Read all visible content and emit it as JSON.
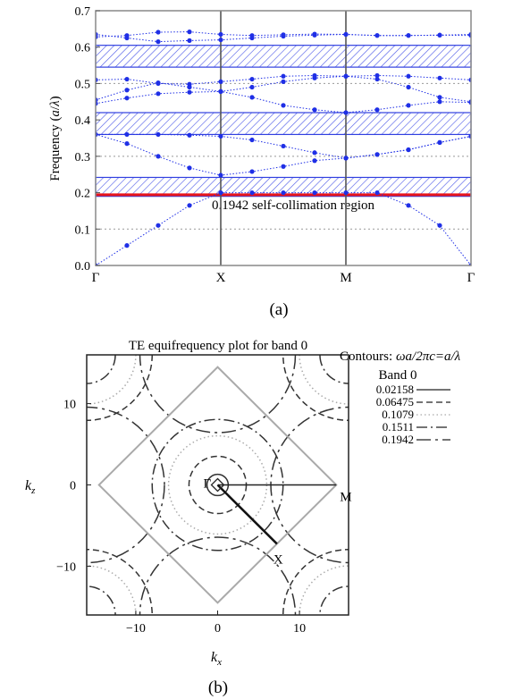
{
  "chart_data": [
    {
      "type": "scatter",
      "panel_caption": "(a)",
      "ylabel": "Frequency (a/λ)",
      "ylabel_parts": {
        "prefix": "Frequency (",
        "a": "a",
        "slash": "/",
        "lambda": "λ",
        "suffix": ")"
      },
      "ylim": [
        0.0,
        0.7
      ],
      "yticks": [
        "0.0",
        "0.1",
        "0.2",
        "0.3",
        "0.4",
        "0.5",
        "0.6",
        "0.7"
      ],
      "yticks_values": [
        0.0,
        0.1,
        0.2,
        0.3,
        0.4,
        0.5,
        0.6,
        0.7
      ],
      "xlim": [
        0,
        3
      ],
      "xticks": [
        "Γ",
        "X",
        "M",
        "Γ"
      ],
      "xticks_values": [
        0,
        1,
        2,
        3
      ],
      "grid": "dotted horizontal",
      "band_gaps": [
        [
          0.19,
          0.242
        ],
        [
          0.36,
          0.42
        ],
        [
          0.545,
          0.605
        ]
      ],
      "self_collimation": {
        "value": 0.1942,
        "label": "0.1942 self-collimation region",
        "color": "#e8141c"
      },
      "point_color": "#1f2fe6",
      "series": [
        {
          "x": [
            0,
            0.25,
            0.5,
            0.75,
            1,
            1.25,
            1.5,
            1.75,
            2,
            2.25,
            2.5,
            2.75,
            3
          ],
          "y": [
            0.0,
            0.055,
            0.11,
            0.165,
            0.2,
            0.2,
            0.2,
            0.2,
            0.2,
            0.2,
            0.165,
            0.11,
            0.0
          ]
        },
        {
          "x": [
            0,
            0.25,
            0.5,
            0.75,
            1,
            1.25,
            1.5,
            1.75,
            2,
            2.25,
            2.5,
            2.75,
            3
          ],
          "y": [
            0.36,
            0.335,
            0.3,
            0.268,
            0.248,
            0.258,
            0.272,
            0.288,
            0.295,
            0.305,
            0.318,
            0.338,
            0.355
          ]
        },
        {
          "x": [
            0,
            0.25,
            0.5,
            0.75,
            1,
            1.25,
            1.5,
            1.75,
            2,
            2.25,
            2.5,
            2.75,
            3
          ],
          "y": [
            0.36,
            0.36,
            0.36,
            0.358,
            0.355,
            0.345,
            0.328,
            0.31,
            0.295,
            0.305,
            0.318,
            0.338,
            0.355
          ]
        },
        {
          "x": [
            0,
            0.25,
            0.5,
            0.75,
            1,
            1.25,
            1.5,
            1.75,
            2,
            2.25,
            2.5,
            2.75,
            3
          ],
          "y": [
            0.445,
            0.46,
            0.472,
            0.476,
            0.478,
            0.462,
            0.44,
            0.428,
            0.42,
            0.428,
            0.44,
            0.45,
            0.448
          ]
        },
        {
          "x": [
            0,
            0.25,
            0.5,
            0.75,
            1,
            1.25,
            1.5,
            1.75,
            2,
            2.25,
            2.5,
            2.75,
            3
          ],
          "y": [
            0.455,
            0.482,
            0.502,
            0.49,
            0.478,
            0.49,
            0.505,
            0.515,
            0.52,
            0.512,
            0.49,
            0.462,
            0.45
          ]
        },
        {
          "x": [
            0,
            0.25,
            0.5,
            0.75,
            1,
            1.25,
            1.5,
            1.75,
            2,
            2.25,
            2.5,
            2.75,
            3
          ],
          "y": [
            0.51,
            0.512,
            0.5,
            0.498,
            0.505,
            0.512,
            0.52,
            0.522,
            0.52,
            0.522,
            0.52,
            0.515,
            0.51
          ]
        },
        {
          "x": [
            0,
            0.25,
            0.5,
            0.75,
            1,
            1.25,
            1.5,
            1.75,
            2,
            2.25,
            2.5,
            2.75,
            3
          ],
          "y": [
            0.628,
            0.632,
            0.641,
            0.642,
            0.635,
            0.632,
            0.634,
            0.636,
            0.635,
            0.632,
            0.632,
            0.633,
            0.632
          ]
        },
        {
          "x": [
            0,
            0.25,
            0.5,
            0.75,
            1,
            1.25,
            1.5,
            1.75,
            2,
            2.25,
            2.5,
            2.75,
            3
          ],
          "y": [
            0.635,
            0.625,
            0.615,
            0.618,
            0.62,
            0.625,
            0.63,
            0.633,
            0.635,
            0.632,
            0.632,
            0.633,
            0.635
          ]
        }
      ]
    },
    {
      "type": "contour",
      "panel_caption": "(b)",
      "title": "TE equifrequency plot for band 0",
      "xlabel": "k_x",
      "ylabel": "k_z",
      "xlabel_parts": {
        "main": "k",
        "sub": "x"
      },
      "ylabel_parts": {
        "main": "k",
        "sub": "z"
      },
      "xlim": [
        -16,
        16
      ],
      "ylim": [
        -16,
        16
      ],
      "xticks": [
        "−10",
        "0",
        "10"
      ],
      "xticks_values": [
        -10,
        0,
        10
      ],
      "yticks": [
        "10",
        "0",
        "−10"
      ],
      "yticks_values": [
        10,
        0,
        -10
      ],
      "brillouin_zone": {
        "half_diagonal": 14.5
      },
      "symmetry_points": [
        {
          "label": "Γ",
          "kx": 0,
          "kz": 0
        },
        {
          "label": "M",
          "kx": 14.5,
          "kz": 0
        },
        {
          "label": "X",
          "kx": 7.25,
          "kz": -7.25
        }
      ],
      "contour_levels": [
        0.02158,
        0.06475,
        0.1079,
        0.1511,
        0.1942
      ],
      "legend": {
        "header_prefix": "Contours: ",
        "header_formula": "ωa/2πc=a/λ",
        "band_label": "Band 0",
        "entries": [
          {
            "label": "0.02158",
            "style": "solid"
          },
          {
            "label": "0.06475",
            "style": "dashed"
          },
          {
            "label": "0.1079",
            "style": "dotted"
          },
          {
            "label": "0.1511",
            "style": "dash-dot"
          },
          {
            "label": "0.1942",
            "style": "long-dash-dot"
          }
        ]
      },
      "contour_radii": {
        "center_circles": [
          1.3,
          3.5,
          6.0,
          8.0
        ],
        "corner_circles": [
          3.5,
          6.0,
          8.0
        ]
      }
    }
  ]
}
